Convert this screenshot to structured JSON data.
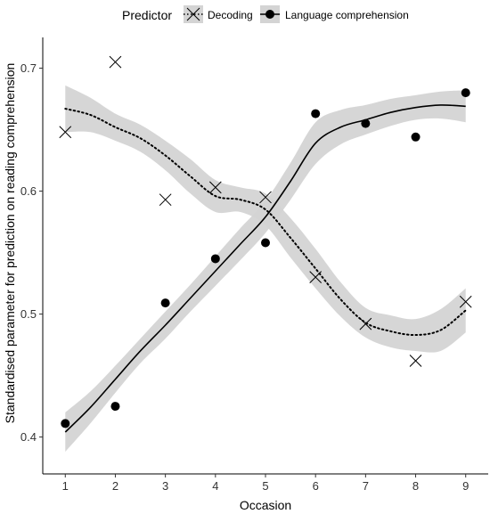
{
  "chart_data": {
    "type": "scatter",
    "xlabel": "Occasion",
    "ylabel": "Standardised parameter for prediction on reading comprehension",
    "xlim": [
      0.55,
      9.45
    ],
    "ylim": [
      0.37,
      0.725
    ],
    "x_ticks": [
      1,
      2,
      3,
      4,
      5,
      6,
      7,
      8,
      9
    ],
    "y_ticks": [
      0.4,
      0.5,
      0.6,
      0.7
    ],
    "grid": false,
    "legend": {
      "title": "Predictor",
      "position": "top",
      "entries": [
        "Decoding",
        "Language comprehension"
      ]
    },
    "series": [
      {
        "name": "Decoding",
        "marker": "x",
        "line_style": "dotted",
        "x": [
          1,
          2,
          3,
          4,
          5,
          6,
          7,
          8,
          9
        ],
        "values": [
          0.648,
          0.705,
          0.593,
          0.603,
          0.595,
          0.53,
          0.492,
          0.462,
          0.51
        ],
        "smooth": {
          "x": [
            1,
            1.5,
            2,
            2.5,
            3,
            3.5,
            4,
            4.5,
            5,
            5.5,
            6,
            6.5,
            7,
            7.5,
            8,
            8.5,
            9
          ],
          "fit": [
            0.667,
            0.662,
            0.652,
            0.643,
            0.629,
            0.612,
            0.596,
            0.593,
            0.585,
            0.562,
            0.537,
            0.512,
            0.493,
            0.486,
            0.483,
            0.487,
            0.503
          ],
          "lower": [
            0.648,
            0.648,
            0.641,
            0.632,
            0.617,
            0.598,
            0.583,
            0.583,
            0.572,
            0.546,
            0.521,
            0.498,
            0.481,
            0.473,
            0.47,
            0.47,
            0.485
          ],
          "upper": [
            0.686,
            0.676,
            0.663,
            0.654,
            0.641,
            0.626,
            0.609,
            0.603,
            0.598,
            0.578,
            0.553,
            0.526,
            0.505,
            0.499,
            0.496,
            0.504,
            0.521
          ]
        }
      },
      {
        "name": "Language comprehension",
        "marker": "circle",
        "line_style": "solid",
        "x": [
          1,
          2,
          3,
          4,
          5,
          6,
          7,
          8,
          9
        ],
        "values": [
          0.411,
          0.425,
          0.509,
          0.545,
          0.558,
          0.663,
          0.655,
          0.644,
          0.68
        ],
        "smooth": {
          "x": [
            1,
            1.5,
            2,
            2.5,
            3,
            3.5,
            4,
            4.5,
            5,
            5.5,
            6,
            6.5,
            7,
            7.5,
            8,
            8.5,
            9
          ],
          "fit": [
            0.404,
            0.424,
            0.447,
            0.47,
            0.491,
            0.513,
            0.535,
            0.557,
            0.579,
            0.608,
            0.639,
            0.652,
            0.658,
            0.664,
            0.668,
            0.67,
            0.669
          ],
          "lower": [
            0.388,
            0.411,
            0.436,
            0.46,
            0.48,
            0.502,
            0.523,
            0.544,
            0.566,
            0.593,
            0.622,
            0.638,
            0.646,
            0.653,
            0.658,
            0.659,
            0.656
          ],
          "upper": [
            0.42,
            0.437,
            0.458,
            0.48,
            0.502,
            0.524,
            0.547,
            0.57,
            0.592,
            0.623,
            0.656,
            0.666,
            0.67,
            0.675,
            0.678,
            0.681,
            0.682
          ]
        }
      }
    ],
    "colors": {
      "band": "#d4d4d4",
      "line": "#000000",
      "marker": "#000000",
      "axis": "#000000"
    }
  }
}
